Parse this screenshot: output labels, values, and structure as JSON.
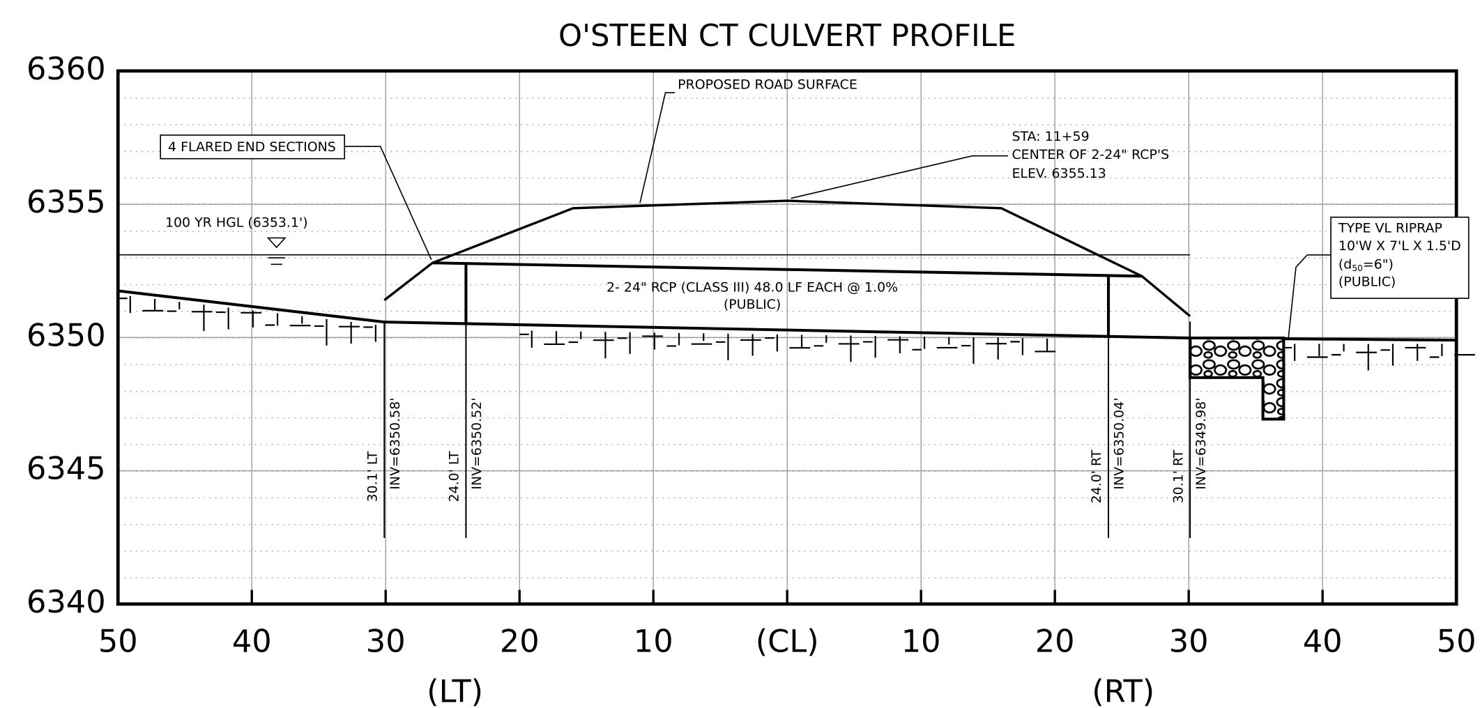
{
  "chart_data": {
    "type": "profile",
    "title": "O'STEEN CT CULVERT PROFILE",
    "xlim": [
      -50,
      50
    ],
    "xticks": [
      {
        "value": -50,
        "label": "50"
      },
      {
        "value": -40,
        "label": "40"
      },
      {
        "value": -30,
        "label": "30"
      },
      {
        "value": -20,
        "label": "20"
      },
      {
        "value": -10,
        "label": "10"
      },
      {
        "value": 0,
        "label": "(CL)"
      },
      {
        "value": 10,
        "label": "10"
      },
      {
        "value": 20,
        "label": "20"
      },
      {
        "value": 30,
        "label": "30"
      },
      {
        "value": 40,
        "label": "40"
      },
      {
        "value": 50,
        "label": "50"
      }
    ],
    "side_labels": [
      "(LT)",
      "(RT)"
    ],
    "ylim": [
      6340,
      6360
    ],
    "yticks": [
      6340,
      6345,
      6350,
      6355,
      6360
    ],
    "grid": true,
    "lines": [
      {
        "color": "#000000",
        "x": [
          -30.1,
          -26.5,
          -16,
          0,
          16,
          26.5,
          30.1
        ],
        "values": [
          6351.4,
          6352.8,
          6354.85,
          6355.13,
          6354.85,
          6352.3,
          6350.8
        ]
      },
      {
        "color": "#000000",
        "x": [
          -26.5,
          26.5
        ],
        "values": [
          6352.8,
          6352.3
        ]
      },
      {
        "color": "#000000",
        "x": [
          -30.1,
          30.1
        ],
        "values": [
          6350.58,
          6349.98
        ]
      },
      {
        "color": "#000000",
        "x": [
          -24,
          -24
        ],
        "values": [
          6350.52,
          6352.78
        ]
      },
      {
        "color": "#000000",
        "x": [
          24,
          24
        ],
        "values": [
          6350.04,
          6352.3
        ]
      },
      {
        "color": "#000000",
        "x": [
          -50,
          -30.1
        ],
        "values": [
          6351.75,
          6350.58
        ]
      },
      {
        "color": "#000000",
        "x": [
          30.1,
          50
        ],
        "values": [
          6349.98,
          6349.9
        ]
      }
    ],
    "hgl": {
      "label": "100 YR HGL (6353.1')",
      "value": 6353.1,
      "x": [
        -50,
        30.1
      ]
    },
    "road_label": "PROPOSED ROAD SURFACE",
    "end_sections": "4 FLARED END SECTIONS",
    "center_note": [
      "STA: 11+59",
      "CENTER OF 2-24\" RCP'S",
      "ELEV. 6355.13"
    ],
    "pipe_note": [
      "2- 24\" RCP (CLASS III) 48.0 LF EACH @ 1.0%",
      "(PUBLIC)"
    ],
    "riprap_note": {
      "line1": "TYPE VL RIPRAP",
      "line2": "10'W X 7'L X 1.5'D",
      "line3": [
        "(d",
        "50",
        "=6\")"
      ],
      "line4": "(PUBLIC)"
    },
    "stations": [
      {
        "x": -30.1,
        "offset": "30.1' LT",
        "inv": "INV=6350.58'"
      },
      {
        "x": -24,
        "offset": "24.0' LT",
        "inv": "INV=6350.52'"
      },
      {
        "x": 24,
        "offset": "24.0' RT",
        "inv": "INV=6350.04'"
      },
      {
        "x": 30.1,
        "offset": "30.1' RT",
        "inv": "INV=6349.98'"
      }
    ]
  }
}
